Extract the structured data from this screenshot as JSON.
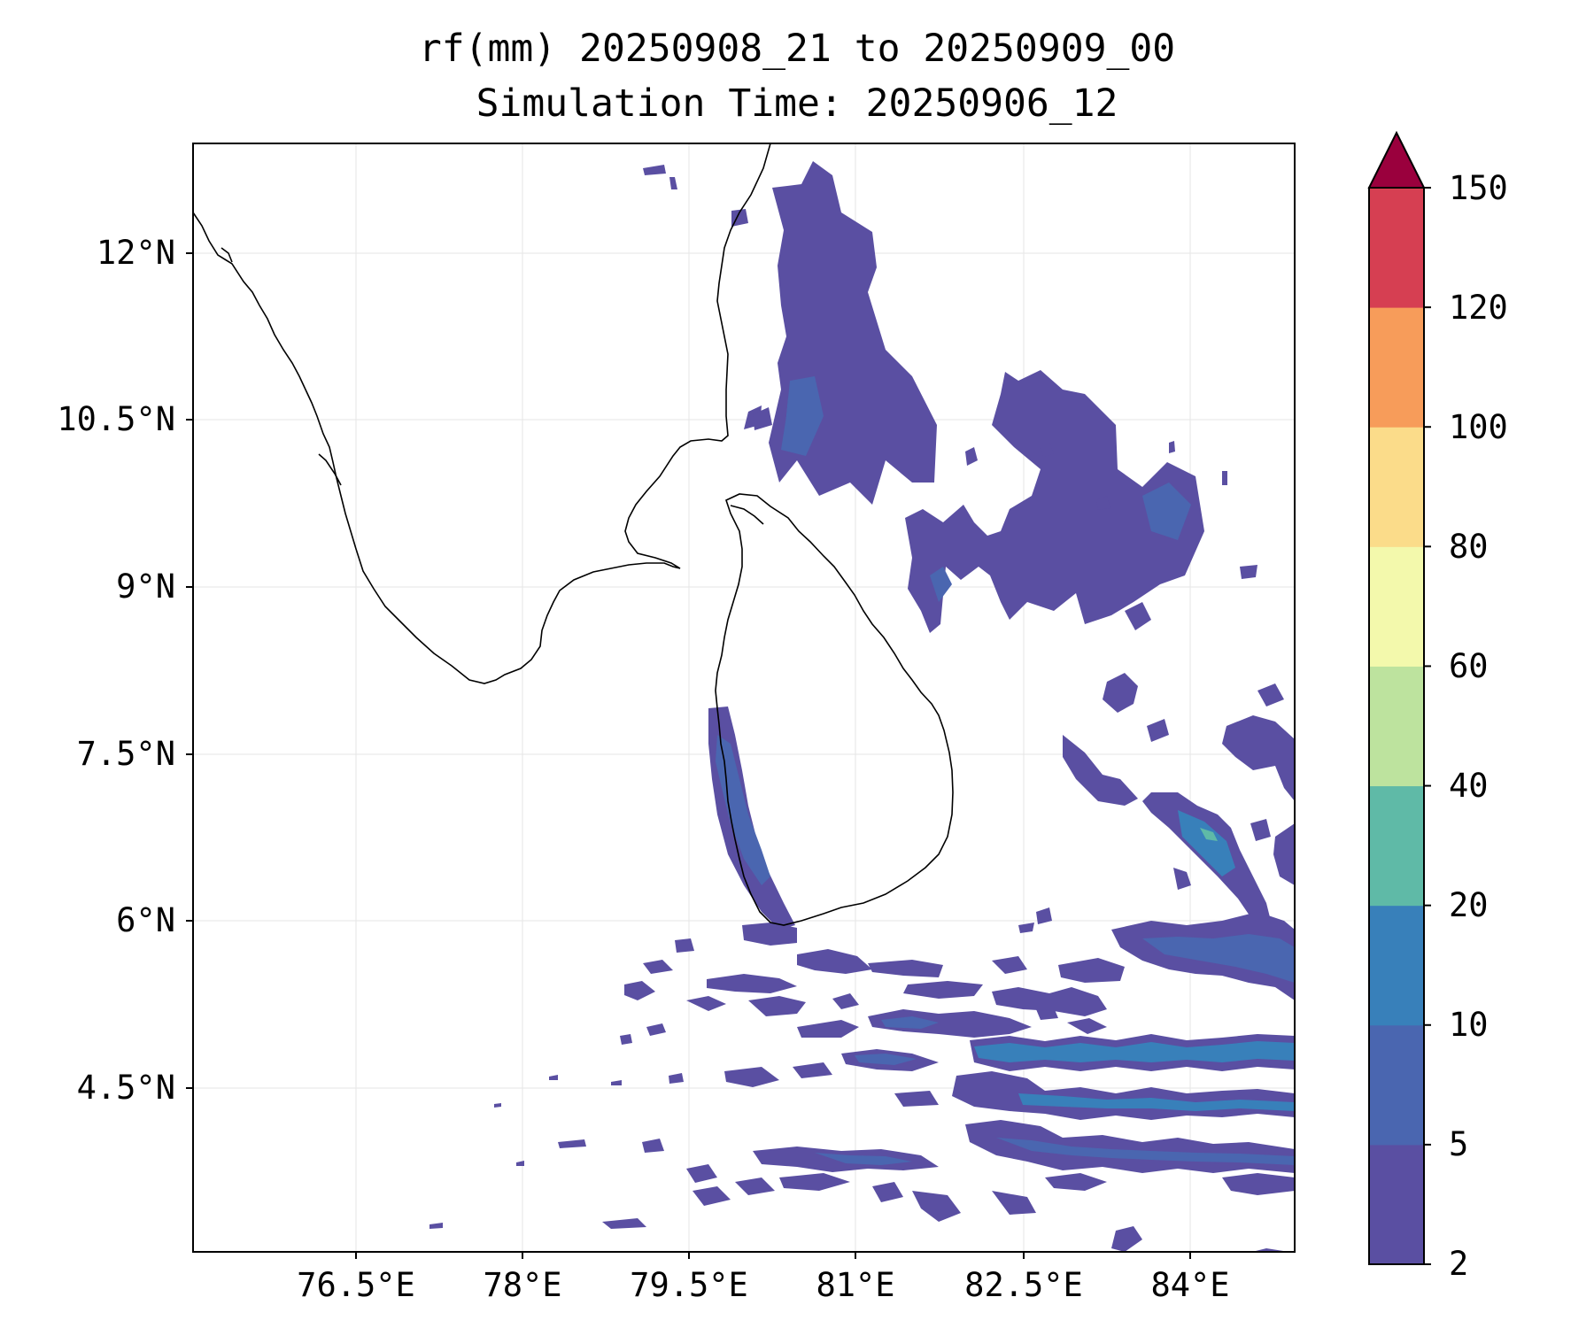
{
  "title": {
    "line1": "rf(mm) 20250908_21 to 20250909_00",
    "line2": "Simulation Time: 20250906_12"
  },
  "map": {
    "lon_range": [
      75.0,
      84.9
    ],
    "lat_range": [
      3.0,
      13.0
    ],
    "lat_ticks": [
      "12°N",
      "10.5°N",
      "9°N",
      "7.5°N",
      "6°N",
      "4.5°N"
    ],
    "lon_ticks": [
      "76.5°E",
      "78°E",
      "79.5°E",
      "81°E",
      "82.5°E",
      "84°E"
    ],
    "gridlines": true,
    "coastline_color": "#000000",
    "regions": [
      "India (south)",
      "Sri Lanka"
    ]
  },
  "colorbar": {
    "labels": [
      "2",
      "5",
      "10",
      "20",
      "40",
      "60",
      "80",
      "100",
      "120",
      "150"
    ],
    "colors": [
      "#5a4fa2",
      "#4a66b0",
      "#3880ba",
      "#5fbaa7",
      "#bde39e",
      "#f3f9ac",
      "#fbdc8a",
      "#f79c5a",
      "#d63f52",
      "#9a003d"
    ],
    "extend": "max",
    "units": "mm"
  }
}
